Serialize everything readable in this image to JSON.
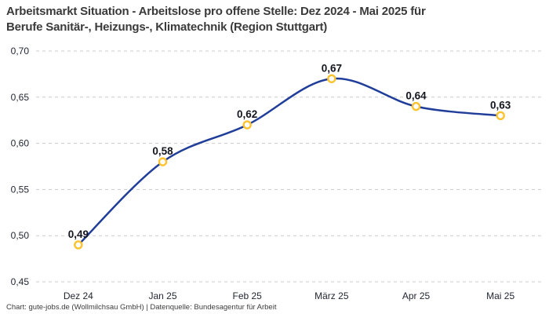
{
  "header": {
    "title_line1": "Arbeitsmarkt Situation - Arbeitslose pro offene Stelle: Dez 2024 - Mai 2025 für",
    "title_line2": "Berufe Sanitär-, Heizungs-, Klimatechnik (Region Stuttgart)"
  },
  "footer": {
    "credit": "Chart: gute-jobs.de (Wollmilchsau GmbH) | Datenquelle: Bundesagentur für Arbeit"
  },
  "chart_data": {
    "type": "line",
    "title": "Arbeitsmarkt Situation - Arbeitslose pro offene Stelle: Dez 2024 - Mai 2025 für Berufe Sanitär-, Heizungs-, Klimatechnik (Region Stuttgart)",
    "categories": [
      "Dez 24",
      "Jan 25",
      "Feb 25",
      "März 25",
      "Apr 25",
      "Mai 25"
    ],
    "values": [
      0.49,
      0.58,
      0.62,
      0.67,
      0.64,
      0.63
    ],
    "value_labels": [
      "0,49",
      "0,58",
      "0,62",
      "0,67",
      "0,64",
      "0,63"
    ],
    "xlabel": "",
    "ylabel": "",
    "ylim": [
      0.45,
      0.7
    ],
    "yticks": [
      0.45,
      0.5,
      0.55,
      0.6,
      0.65,
      0.7
    ],
    "ytick_labels": [
      "0,45",
      "0,50",
      "0,55",
      "0,60",
      "0,65",
      "0,70"
    ],
    "grid": "horizontal-dashed",
    "legend": "none",
    "line_color": "#1f3d99",
    "marker_color": "#fdc22d",
    "grid_color": "#cbcbcb",
    "title_color": "#3a3a3a",
    "background_color": "#ffffff"
  }
}
